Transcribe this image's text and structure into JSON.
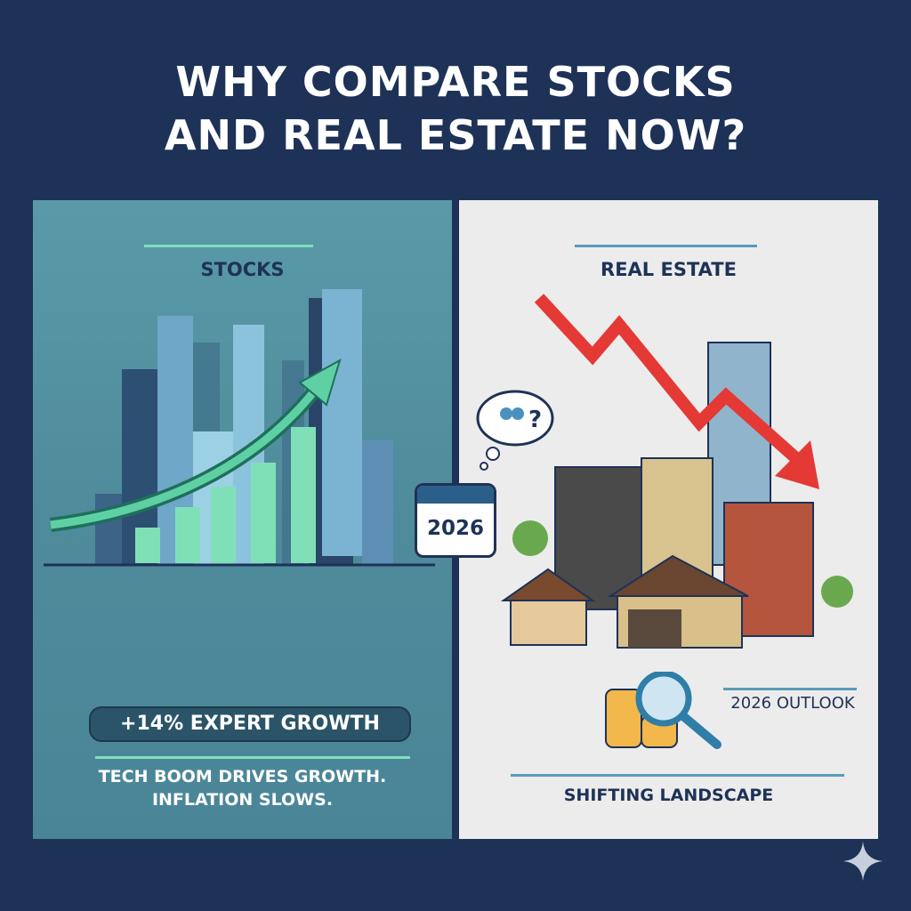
{
  "title_line1": "WHY COMPARE STOCKS",
  "title_line2": "AND REAL ESTATE NOW?",
  "calendar_year": "2026",
  "stocks": {
    "header": "STOCKS",
    "badge": "+14% EXPERT GROWTH",
    "caption_line1": "TECH BOOM DRIVES GROWTH.",
    "caption_line2": "INFLATION SLOWS.",
    "accent": "#7fe0b8"
  },
  "real_estate": {
    "header": "REAL ESTATE",
    "outlook": "2026 OUTLOOK",
    "caption": "SHIFTING LANDSCAPE",
    "trend_color": "#e53935"
  }
}
